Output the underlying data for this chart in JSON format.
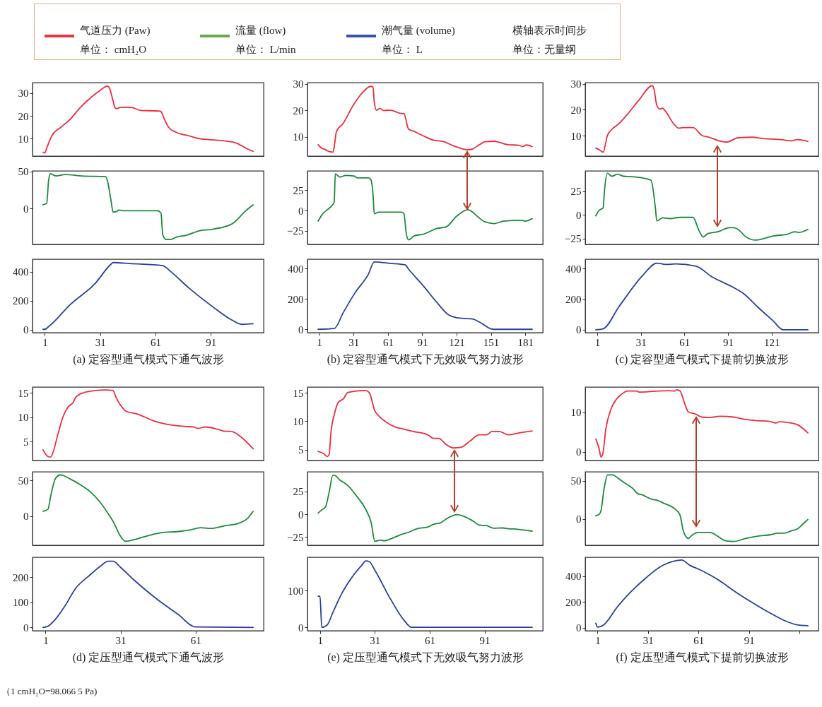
{
  "chart_data": [
    {
      "type": "other",
      "series": [
        {
          "name": "气道压力 (Paw)\n单位： cmH₂O",
          "color": "#e53a3d"
        },
        {
          "name": "流量 (flow)\n单位： L/min",
          "color": "#6aa84f"
        },
        {
          "name": "潮气量 (volume)\n单位： L",
          "color": "#3a55a8"
        }
      ],
      "annotations": [
        "横轴表示时间步",
        "单位：无量纲",
        "（1 cmH₂O=98.066 5 Pa)"
      ]
    },
    {
      "type": "line",
      "xlim": [
        -5.7,
        119.7
      ],
      "ylim": [
        2.4,
        34.6
      ],
      "yticks": [
        10,
        20,
        30
      ],
      "tick_labels": "y",
      "x": [
        0,
        1,
        2,
        5,
        10,
        15,
        20,
        26,
        31,
        35,
        36,
        38,
        39,
        40,
        42,
        48,
        53,
        63,
        64,
        66,
        68,
        72,
        79,
        85,
        94,
        99,
        105,
        110,
        114
      ],
      "series": [
        {
          "color": "#ec2d3a",
          "values": [
            4.1,
            3.8,
            5.9,
            11.6,
            15.2,
            18.8,
            23.5,
            28.1,
            31.2,
            33.1,
            32.3,
            26.6,
            23.7,
            23.2,
            23.8,
            23.7,
            22.4,
            22.2,
            21.9,
            18.3,
            15.2,
            12.9,
            11.3,
            10,
            9.4,
            9,
            8.1,
            5.9,
            4.5
          ]
        }
      ]
    },
    {
      "type": "line",
      "xlim": [
        -5.7,
        119.7
      ],
      "ylim": [
        -48.5,
        50.8
      ],
      "yticks": [
        0,
        50
      ],
      "tick_labels": "y",
      "x": [
        0,
        2,
        3,
        4,
        5,
        7,
        12,
        21,
        34,
        35,
        37,
        38,
        40,
        41,
        44,
        62,
        64,
        65,
        67,
        69,
        72,
        78,
        85,
        92,
        98,
        103,
        110,
        114
      ],
      "series": [
        {
          "color": "#1b8a3c",
          "values": [
            5,
            7,
            37,
            47,
            46,
            44,
            46,
            44,
            43,
            37,
            9,
            -5,
            -4,
            -2,
            -3,
            -3,
            -6,
            -36,
            -42,
            -42,
            -39,
            -36,
            -30,
            -28,
            -25,
            -20,
            -3,
            5
          ]
        }
      ]
    },
    {
      "type": "line",
      "xlim": [
        -5.7,
        119.7
      ],
      "xticks": [
        1,
        31,
        61,
        91
      ],
      "ylim": [
        -20,
        485
      ],
      "yticks": [
        0,
        200,
        400
      ],
      "xlabel": "(a) 定容型通气模式下通气波形",
      "x": [
        0,
        1,
        3,
        15,
        28,
        37,
        38,
        47,
        65,
        69,
        79,
        92,
        102,
        108,
        114
      ],
      "series": [
        {
          "color": "#2a3f9d",
          "values": [
            3,
            3,
            21,
            176,
            314,
            452,
            462,
            455,
            441,
            403,
            289,
            159,
            70,
            37,
            41
          ]
        }
      ]
    },
    {
      "type": "line",
      "xlim": [
        -9.35,
        196.35
      ],
      "ylim": [
        2.8,
        30.5
      ],
      "yticks": [
        10,
        20,
        30
      ],
      "tick_labels": "y",
      "x": [
        0,
        3,
        6,
        9,
        13,
        14,
        16,
        22,
        30,
        38,
        46,
        48,
        49,
        51,
        54,
        57,
        63,
        67,
        71,
        75,
        79,
        84,
        92,
        100,
        110,
        118,
        122,
        131,
        135,
        141,
        146,
        154,
        158,
        166,
        175,
        179,
        182,
        187
      ],
      "series": [
        {
          "color": "#ec2d3a",
          "values": [
            7.1,
            5.8,
            5.3,
            4.6,
            4.3,
            6.2,
            12.1,
            15.2,
            21.5,
            26.4,
            29.1,
            28.8,
            23.3,
            20.1,
            20.8,
            20,
            20.1,
            19.7,
            19,
            18.8,
            13,
            12.1,
            10.4,
            8.9,
            8.2,
            6.7,
            6.1,
            5.2,
            5.5,
            7.1,
            8.2,
            8.4,
            8,
            7.1,
            6.9,
            6.4,
            7,
            6.4
          ]
        }
      ]
    },
    {
      "type": "line",
      "xlim": [
        -9.35,
        196.35
      ],
      "ylim": [
        -41.5,
        48.5
      ],
      "yticks": [
        -25,
        0,
        25
      ],
      "tick_labels": "y",
      "x": [
        0,
        4,
        9,
        12,
        14,
        15,
        19,
        24,
        32,
        34,
        44,
        46,
        48,
        49,
        53,
        57,
        73,
        75,
        77,
        79,
        84,
        92,
        104,
        112,
        121,
        131,
        135,
        139,
        146,
        154,
        162,
        177,
        181,
        187
      ],
      "series": [
        {
          "color": "#1b8a3c",
          "values": [
            -13,
            -4,
            2,
            6,
            10,
            45,
            41,
            43,
            42,
            40,
            40,
            38,
            19,
            -4,
            -2,
            -2,
            -2,
            -4,
            -28,
            -36,
            -31,
            -29,
            -22,
            -20,
            -7,
            1,
            -2,
            -7,
            -14,
            -16,
            -13,
            -12,
            -13,
            -10
          ]
        }
      ]
    },
    {
      "type": "line",
      "xlim": [
        -9.35,
        196.35
      ],
      "xticks": [
        1,
        31,
        61,
        91,
        121,
        151,
        181
      ],
      "ylim": [
        -22,
        462
      ],
      "yticks": [
        0,
        200,
        400
      ],
      "xlabel": "(b) 定容型通气模式下无效吸气努力波形",
      "x": [
        0,
        14,
        22,
        32,
        44,
        49,
        63,
        76,
        79,
        92,
        104,
        114,
        121,
        135,
        141,
        153,
        187
      ],
      "series": [
        {
          "color": "#2a3f9d",
          "values": [
            0,
            5,
            111,
            238,
            365,
            444,
            435,
            425,
            397,
            286,
            175,
            95,
            76,
            68,
            48,
            0,
            0
          ]
        }
      ]
    },
    {
      "type": "line",
      "xlim": [
        -7.3,
        153.3
      ],
      "ylim": [
        2.1,
        30.5
      ],
      "yticks": [
        10,
        20,
        30
      ],
      "tick_labels": "y",
      "x": [
        0,
        3,
        5,
        8,
        11,
        16,
        22,
        30,
        39,
        40,
        42,
        44,
        46,
        48,
        54,
        57,
        60,
        67,
        73,
        78,
        86,
        90,
        98,
        108,
        115,
        127,
        135,
        139,
        146
      ],
      "series": [
        {
          "color": "#ec2d3a",
          "values": [
            5.2,
            4.3,
            3.6,
            10.1,
            12.4,
            14.7,
            18.4,
            24,
            29.4,
            28.1,
            21.7,
            20.3,
            20.6,
            19.4,
            14.3,
            12.9,
            13.1,
            13.1,
            10.1,
            9.4,
            7.8,
            7.5,
            9.2,
            9.4,
            8.9,
            8.5,
            8,
            8.5,
            7.8
          ]
        }
      ]
    },
    {
      "type": "line",
      "xlim": [
        -7.3,
        153.3
      ],
      "ylim": [
        -31,
        46.5
      ],
      "yticks": [
        -25,
        0,
        25
      ],
      "tick_labels": "y",
      "x": [
        0,
        2,
        5,
        6,
        8,
        11,
        15,
        19,
        24,
        32,
        38,
        41,
        42,
        46,
        51,
        58,
        67,
        71,
        74,
        77,
        84,
        92,
        95,
        98,
        103,
        110,
        116,
        122,
        132,
        137,
        140,
        146
      ],
      "series": [
        {
          "color": "#1b8a3c",
          "values": [
            -0.8,
            4.5,
            7.6,
            26.5,
            44.2,
            40.9,
            43,
            40.9,
            40.4,
            39.1,
            36.6,
            7.6,
            -6.3,
            -3,
            -3.8,
            -2.5,
            -2.5,
            -16.4,
            -23.2,
            -19.7,
            -17.7,
            -13.4,
            -13.4,
            -15.2,
            -22.7,
            -26.5,
            -24.7,
            -22.2,
            -20.2,
            -17.7,
            -18.4,
            -15.2
          ]
        }
      ]
    },
    {
      "type": "line",
      "xlim": [
        -7.3,
        153.3
      ],
      "xticks": [
        1,
        31,
        61,
        91,
        121
      ],
      "ylim": [
        -19,
        462
      ],
      "yticks": [
        0,
        200,
        400
      ],
      "xlabel": "(c) 定容型通气模式下提前切换波形",
      "x": [
        0,
        5,
        16,
        32,
        42,
        48,
        55,
        69,
        80,
        95,
        101,
        112,
        122,
        129,
        146
      ],
      "series": [
        {
          "color": "#2a3f9d",
          "values": [
            0,
            6,
            152,
            353,
            436,
            428,
            431,
            416,
            346,
            276,
            242,
            144,
            59,
            0,
            0
          ]
        }
      ]
    },
    {
      "type": "line",
      "xlim": [
        -4.2,
        88.2
      ],
      "ylim": [
        1.1,
        16.2
      ],
      "yticks": [
        5,
        10,
        15
      ],
      "tick_labels": "y",
      "x": [
        0,
        2,
        3,
        4,
        6,
        8,
        10,
        12,
        13,
        16,
        21,
        25,
        28,
        29,
        32,
        33,
        38,
        44,
        49,
        57,
        60,
        62,
        65,
        70,
        73,
        75,
        79,
        84
      ],
      "series": [
        {
          "color": "#ec2d3a",
          "values": [
            3.3,
            1.9,
            1.8,
            2.8,
            6.6,
            10.1,
            12.1,
            13,
            14,
            15,
            15.5,
            15.6,
            15.5,
            14.3,
            11.8,
            11.3,
            10.6,
            9.3,
            8.6,
            8.1,
            8,
            7.7,
            8,
            7.5,
            7.1,
            7.1,
            6,
            3.5
          ]
        }
      ]
    },
    {
      "type": "line",
      "xlim": [
        -4.2,
        88.2
      ],
      "ylim": [
        -40.5,
        62.2
      ],
      "yticks": [
        0,
        50
      ],
      "tick_labels": "y",
      "x": [
        0,
        2,
        3,
        5,
        7,
        8,
        11,
        15,
        19,
        23,
        26,
        28,
        31,
        33,
        36,
        40,
        47,
        55,
        59,
        63,
        67,
        73,
        78,
        82,
        84
      ],
      "series": [
        {
          "color": "#1b8a3c",
          "values": [
            7,
            10,
            27,
            53,
            58,
            57,
            52,
            44,
            34,
            19,
            4,
            -7,
            -28,
            -35,
            -33,
            -29,
            -23,
            -21,
            -19,
            -16,
            -17,
            -13,
            -10,
            -2,
            7
          ]
        }
      ]
    },
    {
      "type": "line",
      "xlim": [
        -4.2,
        88.2
      ],
      "xticks": [
        1,
        31,
        61
      ],
      "ylim": [
        -13,
        279
      ],
      "yticks": [
        0,
        100,
        200
      ],
      "xlabel": "(d) 定压型通气模式下通气波形",
      "x": [
        0,
        2,
        5,
        9,
        13,
        18,
        23,
        26,
        28,
        31,
        36,
        45,
        54,
        61,
        84
      ],
      "series": [
        {
          "color": "#2a3f9d",
          "values": [
            0,
            5,
            33,
            89,
            155,
            202,
            244,
            263,
            263,
            239,
            192,
            117,
            52,
            2,
            0
          ]
        }
      ]
    },
    {
      "type": "line",
      "xlim": [
        -5.85,
        122.85
      ],
      "ylim": [
        3.1,
        16
      ],
      "yticks": [
        5,
        10,
        15
      ],
      "tick_labels": "y",
      "x": [
        0,
        3,
        5,
        6,
        7,
        9,
        11,
        14,
        16,
        21,
        26,
        28,
        31,
        33,
        37,
        42,
        47,
        52,
        60,
        63,
        66,
        70,
        74,
        78,
        83,
        88,
        92,
        95,
        99,
        104,
        109,
        117
      ],
      "series": [
        {
          "color": "#ec2d3a",
          "values": [
            4.7,
            4.3,
            3.8,
            4.1,
            8,
            11.4,
            13.3,
            14,
            15,
            15.3,
            15.4,
            15,
            11.8,
            11,
            9.9,
            9,
            8.6,
            8.2,
            7.6,
            7,
            7,
            5.9,
            5.3,
            5.4,
            6.5,
            7.6,
            7.6,
            8.2,
            8.2,
            7.6,
            7.9,
            8.3
          ]
        }
      ]
    },
    {
      "type": "line",
      "xlim": [
        -5.85,
        122.85
      ],
      "ylim": [
        -34.3,
        46.8
      ],
      "yticks": [
        -25,
        0,
        25
      ],
      "tick_labels": "y",
      "x": [
        0,
        2,
        4,
        6,
        8,
        9,
        12,
        16,
        21,
        26,
        29,
        31,
        34,
        36,
        41,
        45,
        50,
        54,
        60,
        63,
        67,
        70,
        76,
        79,
        85,
        88,
        92,
        96,
        101,
        104,
        109,
        117
      ],
      "series": [
        {
          "color": "#1b8a3c",
          "values": [
            1.3,
            4.8,
            8,
            24.1,
            42.8,
            42.8,
            37.4,
            32.1,
            20.1,
            5.3,
            -9.4,
            -29.9,
            -28.6,
            -29.4,
            -26.2,
            -22.7,
            -19.5,
            -16,
            -14.2,
            -11.2,
            -9.4,
            -5.3,
            -0.5,
            -1.9,
            -8,
            -12,
            -12.6,
            -15.5,
            -15.2,
            -16,
            -16.6,
            -18.7
          ]
        }
      ]
    },
    {
      "type": "line",
      "xlim": [
        -5.85,
        122.85
      ],
      "xticks": [
        1,
        31,
        61,
        91
      ],
      "ylim": [
        -9.3,
        191
      ],
      "yticks": [
        0,
        100
      ],
      "xlabel": "(e) 定压型通气模式下无效吸气努力波形",
      "x": [
        0,
        1,
        2,
        5,
        8,
        13,
        19,
        24,
        26,
        28,
        31,
        39,
        47,
        51,
        117
      ],
      "series": [
        {
          "color": "#2a3f9d",
          "values": [
            85,
            85,
            0,
            7,
            40,
            93,
            140,
            170,
            181,
            179,
            156,
            82,
            19,
            0,
            0
          ]
        }
      ]
    },
    {
      "type": "line",
      "xlim": [
        -6.3,
        132.3
      ],
      "ylim": [
        -2.2,
        16.4
      ],
      "yticks": [
        0,
        10
      ],
      "tick_labels": "y",
      "x": [
        0,
        2,
        3,
        4,
        6,
        9,
        12,
        15,
        19,
        24,
        26,
        31,
        37,
        43,
        47,
        48,
        50,
        53,
        55,
        59,
        63,
        68,
        74,
        82,
        89,
        96,
        103,
        107,
        109,
        116,
        120,
        126
      ],
      "series": [
        {
          "color": "#ec2d3a",
          "values": [
            3.2,
            0.7,
            -1.3,
            -0.8,
            5.9,
            10.8,
            13.2,
            14.5,
            15.4,
            15.4,
            15.1,
            15.2,
            15.4,
            15.5,
            15.4,
            15.7,
            15.4,
            12,
            10.1,
            9.6,
            8.8,
            8.7,
            9,
            8.8,
            8.2,
            7.9,
            7.7,
            7.3,
            7.6,
            7.3,
            6.8,
            4.8
          ]
        }
      ]
    },
    {
      "type": "line",
      "xlim": [
        -6.3,
        132.3
      ],
      "ylim": [
        -35,
        62.1
      ],
      "yticks": [
        0,
        50
      ],
      "tick_labels": "y",
      "x": [
        0,
        2,
        3,
        5,
        7,
        10,
        13,
        16,
        22,
        25,
        27,
        33,
        37,
        41,
        45,
        48,
        50,
        52,
        55,
        57,
        61,
        68,
        71,
        77,
        82,
        89,
        96,
        104,
        108,
        112,
        116,
        120,
        123,
        126
      ],
      "series": [
        {
          "color": "#1b8a3c",
          "values": [
            4,
            6,
            10,
            41,
            58,
            58,
            54,
            49,
            40,
            33,
            32,
            26,
            24,
            20,
            16,
            11,
            5,
            -16,
            -26,
            -22,
            -18,
            -18,
            -21,
            -29,
            -30,
            -26,
            -23,
            -21,
            -19,
            -19,
            -16,
            -13,
            -7,
            -1
          ]
        }
      ]
    },
    {
      "type": "line",
      "xlim": [
        -6.3,
        132.3
      ],
      "xticks": [
        1,
        31,
        61,
        91,
        {
          "value": 121,
          "label": null
        }
      ],
      "ylim": [
        -24,
        548
      ],
      "yticks": [
        0,
        200,
        400
      ],
      "xlabel": "(f) 定压型通气模式下提前切换波形",
      "x": [
        0,
        1,
        4,
        13,
        20,
        30,
        38,
        48,
        51,
        56,
        61,
        68,
        75,
        82,
        92,
        103,
        112,
        119,
        126
      ],
      "series": [
        {
          "color": "#2a3f9d",
          "values": [
            34,
            4,
            15,
            165,
            268,
            390,
            471,
            522,
            527,
            484,
            456,
            409,
            353,
            287,
            203,
            118,
            56,
            24,
            15
          ]
        }
      ]
    }
  ]
}
